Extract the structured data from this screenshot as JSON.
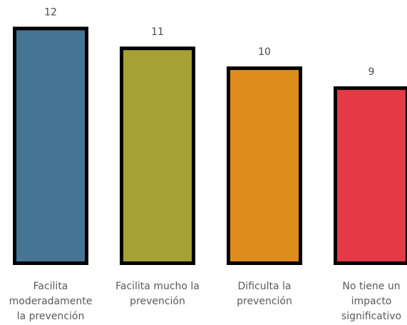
{
  "chart_data": {
    "type": "bar",
    "categories": [
      [
        "Facilita",
        "moderadamente",
        "la prevención"
      ],
      [
        "Facilita mucho la",
        "prevención"
      ],
      [
        "Dificulta la",
        "prevención"
      ],
      [
        "No tiene un",
        "impacto",
        "significativo"
      ]
    ],
    "values": [
      12,
      11,
      10,
      9
    ],
    "colors": [
      "#467495",
      "#A7A035",
      "#DE8C1B",
      "#E33A46"
    ],
    "border_color": "#000000",
    "data_labels": [
      "12",
      "11",
      "10",
      "9"
    ],
    "grid": false,
    "legend": "none",
    "ylim": [
      0,
      12.6
    ]
  }
}
